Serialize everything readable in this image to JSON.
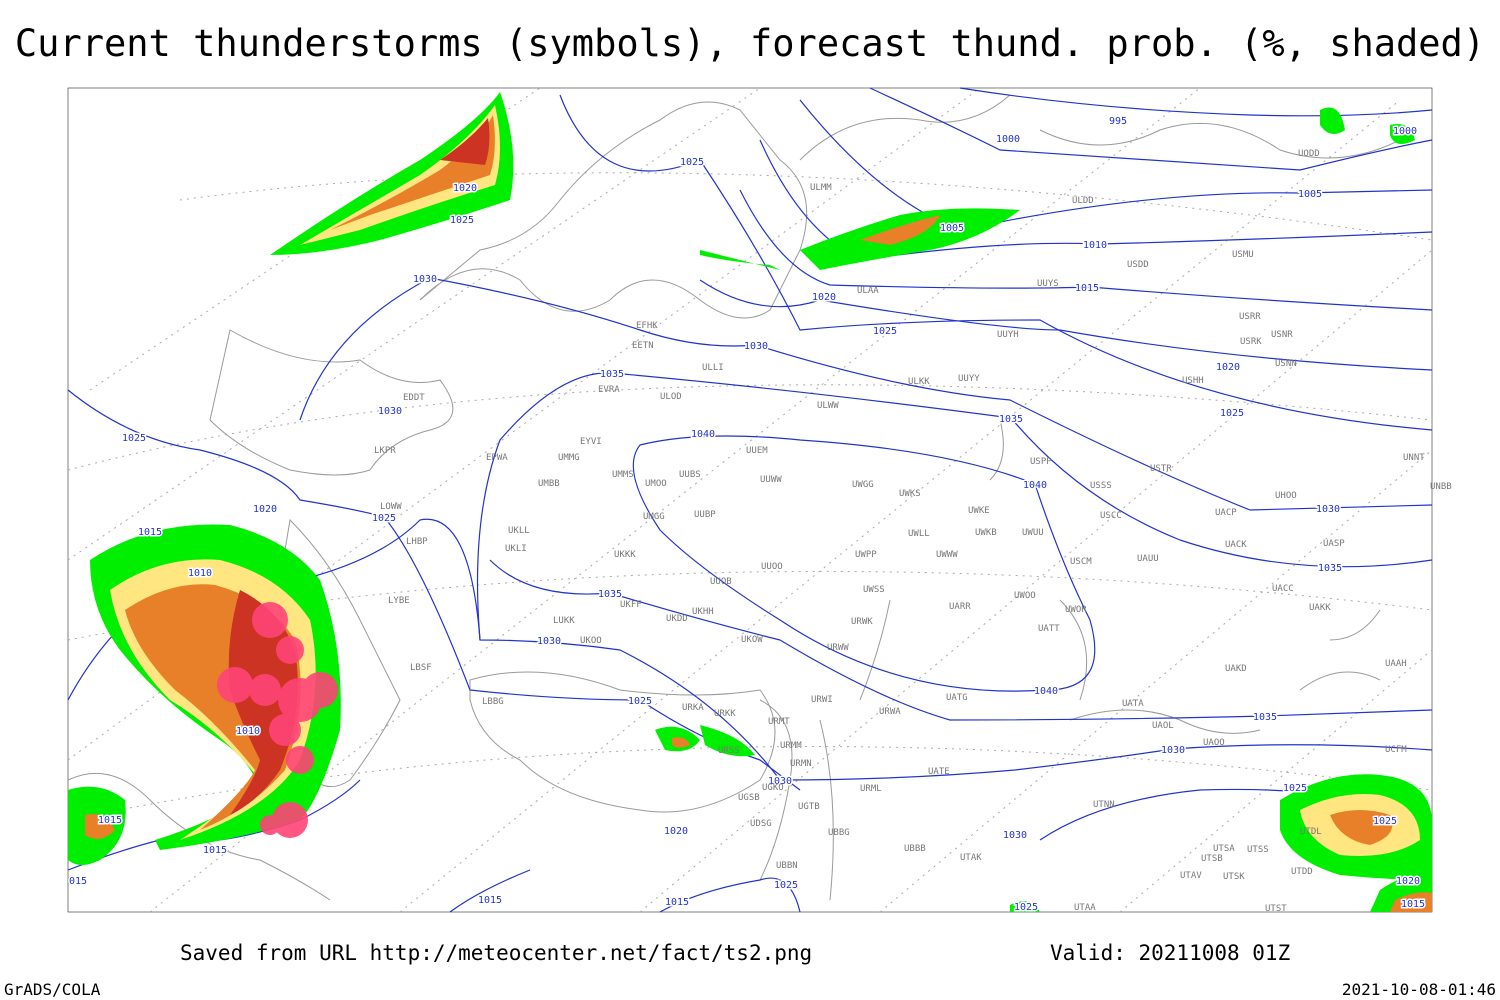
{
  "title": "Current thunderstorms (symbols), forecast thund. prob. (%, shaded)",
  "footer": {
    "source": "Saved from URL  http://meteocenter.net/fact/ts2.png",
    "valid": "Valid: 20211008 01Z",
    "software": "GrADS/COLA",
    "timestamp": "2021-10-08-01:46"
  },
  "isobar_labels": [
    "995",
    "1000",
    "1000",
    "1005",
    "1005",
    "1010",
    "1015",
    "1020",
    "1025",
    "1030",
    "1035",
    "1035",
    "1030",
    "1025",
    "1025",
    "1020",
    "1015",
    "1040",
    "1040",
    "1040",
    "1035",
    "1035",
    "1035",
    "1030",
    "1030",
    "1025",
    "1020",
    "1025",
    "1020",
    "1025",
    "1030",
    "1030",
    "1025",
    "1020",
    "1025",
    "1015",
    "1010",
    "1010",
    "1015",
    "1015",
    "015",
    "1025",
    "1020",
    "1030",
    "1025",
    "1015",
    "1015",
    "1030",
    "1025"
  ],
  "stations": [
    "EFHK",
    "EETN",
    "EVRA",
    "ULOD",
    "ULLI",
    "ULKK",
    "UUYY",
    "ULWW",
    "EYVI",
    "UMMG",
    "EPWA",
    "UMBB",
    "UMMS",
    "UMOO",
    "UUBS",
    "UUEM",
    "UUWW",
    "UWGG",
    "UWKS",
    "UWKE",
    "UWKB",
    "UWUU",
    "UWLL",
    "UWWW",
    "USPP",
    "USSS",
    "USTR",
    "USCC",
    "USCM",
    "UAUU",
    "UACP",
    "UACK",
    "UASP",
    "UNNT",
    "UNBB",
    "UKKK",
    "UKLL",
    "UKLI",
    "UMGG",
    "UUBP",
    "UUOO",
    "UWPP",
    "UUOB",
    "UKFF",
    "UKHH",
    "UKDD",
    "UKOO",
    "LUKK",
    "UWSS",
    "UARR",
    "UWOO",
    "UWOR",
    "UATT",
    "UACC",
    "UAKK",
    "UAKD",
    "UAAH",
    "URWK",
    "URWW",
    "UKOW",
    "LBSF",
    "LYBE",
    "LHBP",
    "LOWW",
    "LKPR",
    "EDDT",
    "LBBG",
    "ULMM",
    "ULDD",
    "USDD",
    "USMU",
    "UUYS",
    "ULAA",
    "UUYH",
    "USHH",
    "USRK",
    "USNR",
    "USRR",
    "USNN",
    "URKA",
    "URKK",
    "URSS",
    "URMT",
    "URMM",
    "URMN",
    "URML",
    "UGKO",
    "UGSB",
    "UGTB",
    "UDSG",
    "UBBG",
    "UBBN",
    "UBBB",
    "UTAK",
    "URWI",
    "URWA",
    "UATG",
    "UATE",
    "UATA",
    "UAOL",
    "UAOO",
    "UTNN",
    "UTSA",
    "UTSS",
    "UTSB",
    "UTAV",
    "UTSK",
    "UTDD",
    "UTST",
    "UTAA",
    "UCFM",
    "UTDL",
    "UHOO",
    "UODD"
  ]
}
